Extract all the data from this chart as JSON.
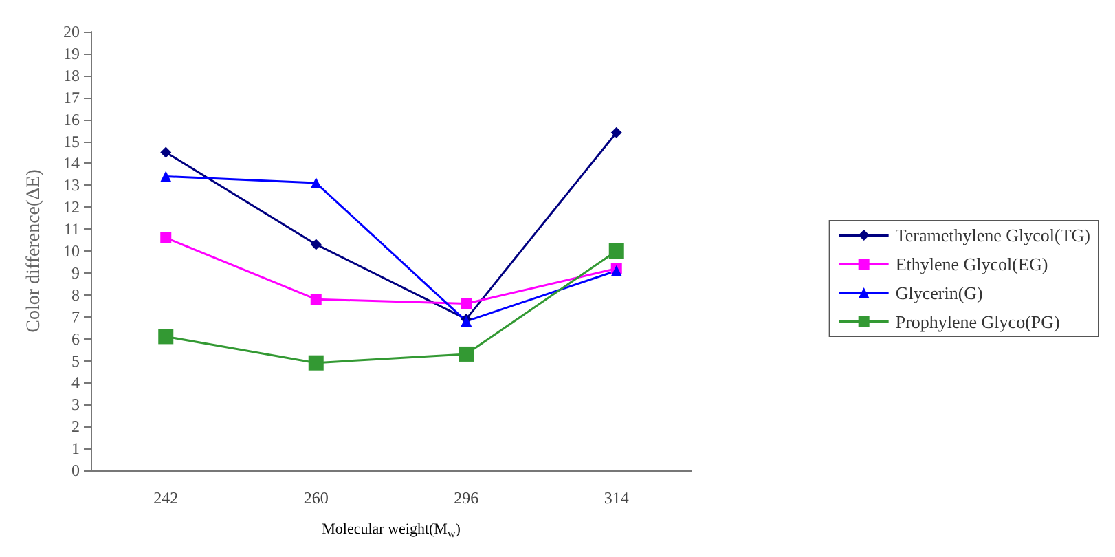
{
  "chart_data": {
    "type": "line",
    "xlabel": "Molecular weight(M$_{w}$)",
    "ylabel": "Color difference(ΔE)",
    "categories": [
      "242",
      "260",
      "296",
      "314"
    ],
    "series": [
      {
        "name": "Teramethylene Glycol(TG)",
        "color": "#000080",
        "marker": "diamond",
        "values": [
          14.5,
          10.3,
          6.9,
          15.4
        ]
      },
      {
        "name": "Ethylene Glycol(EG)",
        "color": "#ff00ff",
        "marker": "square",
        "values": [
          10.6,
          7.8,
          7.6,
          9.2
        ]
      },
      {
        "name": "Glycerin(G)",
        "color": "#0000ff",
        "marker": "triangle",
        "values": [
          13.4,
          13.1,
          6.8,
          9.1
        ]
      },
      {
        "name": "Prophylene Glyco(PG)",
        "color": "#339933",
        "marker": "square",
        "values": [
          6.1,
          4.9,
          5.3,
          10.0
        ]
      }
    ],
    "ylim": [
      0,
      20
    ],
    "yticks": [
      0,
      1,
      2,
      3,
      4,
      5,
      6,
      7,
      8,
      9,
      10,
      11,
      12,
      13,
      14,
      15,
      16,
      17,
      18,
      19,
      20
    ],
    "grid": false,
    "legend": "right",
    "line_style": "solid"
  }
}
